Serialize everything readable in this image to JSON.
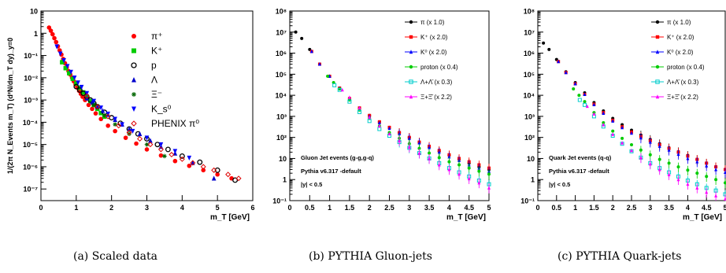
{
  "chart_data": [
    {
      "type": "scatter",
      "caption": "(a) Scaled data",
      "xlabel": "m_T [GeV]",
      "ylabel": "1/(2π N_Events m_T) (d²N/dm_T dy)_y=0",
      "xlim": [
        0,
        6
      ],
      "ylim": [
        3e-08,
        10
      ],
      "log_y": true,
      "x_ticks": [
        "0",
        "1",
        "2",
        "3",
        "4",
        "5",
        "6"
      ],
      "y_ticks": [
        "10",
        "1",
        "10⁻¹",
        "10⁻²",
        "10⁻³",
        "10⁻⁴",
        "10⁻⁵",
        "10⁻⁶",
        "10⁻⁷"
      ],
      "legend_position": "top-right",
      "series": [
        {
          "name": "π⁺",
          "color": "#ff0000",
          "marker": "circle",
          "x": [
            0.23,
            0.28,
            0.33,
            0.38,
            0.43,
            0.48,
            0.53,
            0.58,
            0.63,
            0.68,
            0.73,
            0.78,
            0.83,
            0.88,
            0.93,
            0.98,
            1.03,
            1.08,
            1.13,
            1.18,
            1.25,
            1.35,
            1.45,
            1.55,
            1.7,
            1.9,
            2.1,
            2.4,
            2.7,
            3.0,
            3.4,
            3.8,
            4.2,
            4.6,
            5.0,
            5.4
          ],
          "y": [
            1.8,
            1.3,
            0.9,
            0.6,
            0.4,
            0.26,
            0.17,
            0.11,
            0.07,
            0.045,
            0.03,
            0.02,
            0.014,
            0.01,
            0.007,
            0.005,
            0.0036,
            0.0026,
            0.0019,
            0.0014,
            0.001,
            0.0006,
            0.0004,
            0.00025,
            0.00014,
            7e-05,
            4e-05,
            2e-05,
            1.1e-05,
            6e-06,
            3.2e-06,
            1.8e-06,
            1.1e-06,
            7e-07,
            4.5e-07,
            3e-07
          ]
        },
        {
          "name": "K⁺",
          "color": "#00cc00",
          "marker": "square",
          "x": [
            0.6,
            0.7,
            0.8,
            0.9,
            1.0,
            1.1,
            1.2,
            1.3,
            1.4,
            1.5,
            1.6,
            1.7,
            1.8
          ],
          "y": [
            0.05,
            0.027,
            0.016,
            0.009,
            0.0055,
            0.0035,
            0.0022,
            0.0014,
            0.0009,
            0.0006,
            0.0004,
            0.00026,
            0.00018
          ]
        },
        {
          "name": "p",
          "color": "#000000",
          "marker": "open-circle",
          "x": [
            1.0,
            1.1,
            1.2,
            1.3,
            1.4,
            1.5,
            1.6,
            1.8,
            2.0,
            2.25,
            2.5,
            2.75,
            3.0,
            3.3,
            3.6,
            4.0,
            4.5,
            5.0,
            5.5
          ],
          "y": [
            0.004,
            0.0028,
            0.002,
            0.0014,
            0.001,
            0.0007,
            0.0005,
            0.00028,
            0.00016,
            9e-05,
            5e-05,
            3e-05,
            1.8e-05,
            1e-05,
            6e-06,
            3e-06,
            1.6e-06,
            7e-07,
            2.5e-07
          ]
        },
        {
          "name": "Λ",
          "color": "#0000cc",
          "marker": "triangle",
          "x": [
            1.3,
            1.45,
            1.6,
            1.75,
            1.9,
            2.1,
            2.3,
            2.5,
            2.8,
            3.1,
            3.4,
            3.8,
            4.3,
            4.9
          ],
          "y": [
            0.0012,
            0.0008,
            0.0005,
            0.00033,
            0.00022,
            0.00013,
            8e-05,
            5e-05,
            3e-05,
            1.5e-05,
            8e-06,
            4e-06,
            1.5e-06,
            3e-07
          ]
        },
        {
          "name": "Ξ⁻",
          "color": "#006600",
          "marker": "star",
          "x": [
            1.5,
            1.8,
            2.1,
            2.5,
            3.0,
            3.5
          ],
          "y": [
            0.0006,
            0.0002,
            8e-05,
            3e-05,
            1e-05,
            3e-06
          ]
        },
        {
          "name": "K_s⁰",
          "color": "#0000ff",
          "marker": "triangle-down",
          "x": [
            0.45,
            0.55,
            0.65,
            0.75,
            0.85,
            0.95,
            1.05,
            1.15,
            1.3,
            1.5,
            1.7,
            1.9,
            2.1,
            2.3,
            2.6,
            3.0,
            3.4,
            3.8,
            4.2
          ],
          "y": [
            0.25,
            0.12,
            0.06,
            0.033,
            0.018,
            0.01,
            0.006,
            0.0038,
            0.002,
            0.0009,
            0.00045,
            0.00024,
            0.00014,
            8e-05,
            4e-05,
            2e-05,
            1e-05,
            5e-06,
            2.5e-06
          ]
        },
        {
          "name": "PHENIX π⁰",
          "color": "#dd0000",
          "marker": "open-diamond",
          "x": [
            1.3,
            1.6,
            1.9,
            2.2,
            2.5,
            2.8,
            3.1,
            3.4,
            3.7,
            4.0,
            4.3,
            4.6,
            4.9,
            5.3,
            5.6
          ],
          "y": [
            0.0015,
            0.0005,
            0.00018,
            7e-05,
            3.5e-05,
            1.8e-05,
            1e-05,
            6e-06,
            3.5e-06,
            2.2e-06,
            1.5e-06,
            1e-06,
            7e-07,
            4.5e-07,
            3e-07
          ]
        }
      ]
    },
    {
      "type": "scatter",
      "caption": "(b) PYTHIA Gluon-jets",
      "xlabel": "m_T [GeV]",
      "xlim": [
        0,
        5
      ],
      "ylim": [
        0.1,
        100000000.0
      ],
      "log_y": true,
      "x_ticks": [
        "0",
        "0.5",
        "1",
        "1.5",
        "2",
        "2.5",
        "3",
        "3.5",
        "4",
        "4.5",
        "5"
      ],
      "y_ticks": [
        "10⁸",
        "10⁷",
        "10⁶",
        "10⁵",
        "10⁴",
        "10³",
        "10²",
        "10",
        "1",
        "10⁻¹"
      ],
      "legend_position": "top-right",
      "annotations": [
        "Gluon Jet events (g-g,g-q)",
        "Pythia v6.317 -default",
        "|y| < 0.5"
      ],
      "series": [
        {
          "name": "π (x 1.0)",
          "color": "#000000",
          "marker": "circle",
          "x": [
            0.15,
            0.3,
            0.5,
            0.75,
            1.0,
            1.25,
            1.5,
            1.75,
            2.0,
            2.25,
            2.5,
            2.75,
            3.0,
            3.25,
            3.5,
            3.75,
            4.0,
            4.25,
            4.5,
            4.75,
            5.0
          ],
          "y": [
            10000000.0,
            5000000.0,
            1500000.0,
            300000.0,
            80000.0,
            22000.0,
            7000.0,
            2500.0,
            1100.0,
            550,
            300,
            170,
            100,
            60,
            35,
            22,
            14,
            9,
            6,
            4,
            3
          ]
        },
        {
          "name": "K⁺ (x 2.0)",
          "color": "#ff0000",
          "marker": "square",
          "x": [
            0.55,
            0.75,
            1.0,
            1.25,
            1.5,
            1.75,
            2.0,
            2.25,
            2.5,
            2.75,
            3.0,
            3.25,
            3.5,
            3.75,
            4.0,
            4.25,
            4.5,
            4.75,
            5.0
          ],
          "y": [
            1200000.0,
            300000.0,
            80000.0,
            22000.0,
            7000.0,
            2500.0,
            1100.0,
            550,
            300,
            170,
            100,
            60,
            38,
            24,
            15,
            10,
            7,
            5,
            3.5
          ]
        },
        {
          "name": "K⁰ (x 2.0)",
          "color": "#0000ff",
          "marker": "triangle",
          "x": [
            0.55,
            0.75,
            1.0,
            1.25,
            1.5,
            1.75,
            2.0,
            2.25,
            2.5,
            2.75,
            3.0,
            3.25,
            3.5,
            3.75,
            4.0,
            4.25,
            4.5,
            4.75,
            5.0
          ],
          "y": [
            1200000.0,
            300000.0,
            80000.0,
            22000.0,
            7000.0,
            2500.0,
            1000.0,
            500,
            270,
            150,
            90,
            55,
            33,
            20,
            12,
            8,
            5,
            3.5,
            2.5
          ]
        },
        {
          "name": "proton (x 0.4)",
          "color": "#00cc00",
          "marker": "circle",
          "x": [
            0.95,
            1.1,
            1.25,
            1.5,
            1.75,
            2.0,
            2.25,
            2.5,
            2.75,
            3.0,
            3.25,
            3.5,
            3.75,
            4.0,
            4.25,
            4.5,
            4.75,
            5.0
          ],
          "y": [
            80000.0,
            40000.0,
            20000.0,
            6000.0,
            2000.0,
            800,
            350,
            170,
            90,
            50,
            30,
            18,
            11,
            7,
            5,
            3.5,
            2.5,
            1.8
          ]
        },
        {
          "name": "Λ+Λ̄ (x 0.3)",
          "color": "#00cccc",
          "marker": "open-square",
          "x": [
            1.12,
            1.25,
            1.5,
            1.75,
            2.0,
            2.25,
            2.5,
            2.75,
            3.0,
            3.25,
            3.5,
            3.75,
            4.0,
            4.25,
            4.5,
            4.75,
            5.0
          ],
          "y": [
            30000.0,
            18000.0,
            5000.0,
            1600.0,
            600,
            250,
            120,
            60,
            32,
            18,
            10,
            6,
            3.5,
            2.2,
            1.4,
            0.9,
            0.6
          ]
        },
        {
          "name": "Ξ+Ξ̄ (x 2.2)",
          "color": "#ff00ff",
          "marker": "triangle",
          "x": [
            1.32,
            1.5,
            1.75,
            2.0,
            2.25,
            2.5,
            2.75,
            3.0,
            3.25,
            3.5,
            3.75,
            4.0,
            4.25,
            4.5,
            4.75,
            5.0
          ],
          "y": [
            18000.0,
            8000.0,
            2500.0,
            900,
            350,
            150,
            70,
            35,
            18,
            10,
            5,
            3,
            1.8,
            1.1,
            0.7,
            0.4
          ]
        }
      ]
    },
    {
      "type": "scatter",
      "caption": "(c) PYTHIA Quark-jets",
      "xlabel": "m_T [GeV]",
      "xlim": [
        0,
        5
      ],
      "ylim": [
        0.1,
        100000000.0
      ],
      "log_y": true,
      "x_ticks": [
        "0",
        "0.5",
        "1",
        "1.5",
        "2",
        "2.5",
        "3",
        "3.5",
        "4",
        "4.5",
        "5"
      ],
      "y_ticks": [
        "10⁸",
        "10⁷",
        "10⁶",
        "10⁵",
        "10⁴",
        "10³",
        "10²",
        "10",
        "1",
        "10⁻¹"
      ],
      "legend_position": "top-right",
      "annotations": [
        "Quark Jet events (q-q)",
        "Pythia v6.317 -default",
        "|y| < 0.5"
      ],
      "series": [
        {
          "name": "π (x 1.0)",
          "color": "#000000",
          "marker": "circle",
          "x": [
            0.15,
            0.3,
            0.5,
            0.75,
            1.0,
            1.25,
            1.5,
            1.75,
            2.0,
            2.25,
            2.5,
            2.75,
            3.0,
            3.25,
            3.5,
            3.75,
            4.0,
            4.25,
            4.5,
            4.75,
            5.0
          ],
          "y": [
            3000000.0,
            1500000.0,
            500000.0,
            130000.0,
            40000.0,
            13000.0,
            4500.0,
            1800.0,
            800,
            400,
            220,
            130,
            80,
            50,
            32,
            21,
            14,
            9,
            6,
            4,
            3
          ]
        },
        {
          "name": "K⁺ (x 2.0)",
          "color": "#ff0000",
          "marker": "square",
          "x": [
            0.55,
            0.75,
            1.0,
            1.25,
            1.5,
            1.75,
            2.0,
            2.25,
            2.5,
            2.75,
            3.0,
            3.25,
            3.5,
            3.75,
            4.0,
            4.25,
            4.5,
            4.75,
            5.0
          ],
          "y": [
            400000.0,
            120000.0,
            35000.0,
            11000.0,
            3800.0,
            1500.0,
            650,
            320,
            180,
            110,
            70,
            45,
            30,
            20,
            13,
            9,
            6,
            4,
            3
          ]
        },
        {
          "name": "K⁰ (x 2.0)",
          "color": "#0000ff",
          "marker": "triangle",
          "x": [
            0.55,
            0.75,
            1.0,
            1.25,
            1.5,
            1.75,
            2.0,
            2.25,
            2.5,
            2.75,
            3.0,
            3.25,
            3.5,
            3.75,
            4.0,
            4.25,
            4.5,
            4.75,
            5.0
          ],
          "y": [
            400000.0,
            120000.0,
            35000.0,
            11000.0,
            3600.0,
            1400.0,
            600,
            290,
            160,
            95,
            60,
            38,
            25,
            16,
            10,
            7,
            4.5,
            3,
            2.2
          ]
        },
        {
          "name": "proton (x 0.4)",
          "color": "#00cc00",
          "marker": "circle",
          "x": [
            0.95,
            1.1,
            1.25,
            1.5,
            1.75,
            2.0,
            2.25,
            2.5,
            2.75,
            3.0,
            3.25,
            3.5,
            3.75,
            4.0,
            4.25,
            4.5,
            4.75,
            5.0
          ],
          "y": [
            20000.0,
            10000.0,
            5000.0,
            1500.0,
            500,
            200,
            90,
            45,
            25,
            15,
            9,
            6,
            4,
            2.8,
            2,
            1.4,
            1,
            0.7
          ]
        },
        {
          "name": "Λ+Λ̄ (x 0.3)",
          "color": "#00cccc",
          "marker": "open-square",
          "x": [
            1.12,
            1.25,
            1.5,
            1.75,
            2.0,
            2.25,
            2.5,
            2.75,
            3.0,
            3.25,
            3.5,
            3.75,
            4.0,
            4.25,
            4.5,
            4.75,
            5.0
          ],
          "y": [
            6000.0,
            3500.0,
            1000.0,
            330,
            120,
            50,
            22,
            11,
            6,
            3.5,
            2.2,
            1.4,
            0.9,
            0.6,
            0.4,
            0.3,
            0.2
          ]
        },
        {
          "name": "Ξ+Ξ̄ (x 2.2)",
          "color": "#ff00ff",
          "marker": "triangle",
          "x": [
            1.32,
            1.5,
            1.75,
            2.0,
            2.25,
            2.5,
            2.75,
            3.0,
            3.25,
            3.5,
            3.75,
            4.0,
            4.25,
            4.5,
            4.75,
            5.0
          ],
          "y": [
            3000.0,
            1300.0,
            400,
            140,
            55,
            24,
            11,
            5.5,
            3,
            1.7,
            1,
            0.6,
            0.4,
            0.25,
            0.17,
            0.12
          ]
        }
      ]
    }
  ]
}
